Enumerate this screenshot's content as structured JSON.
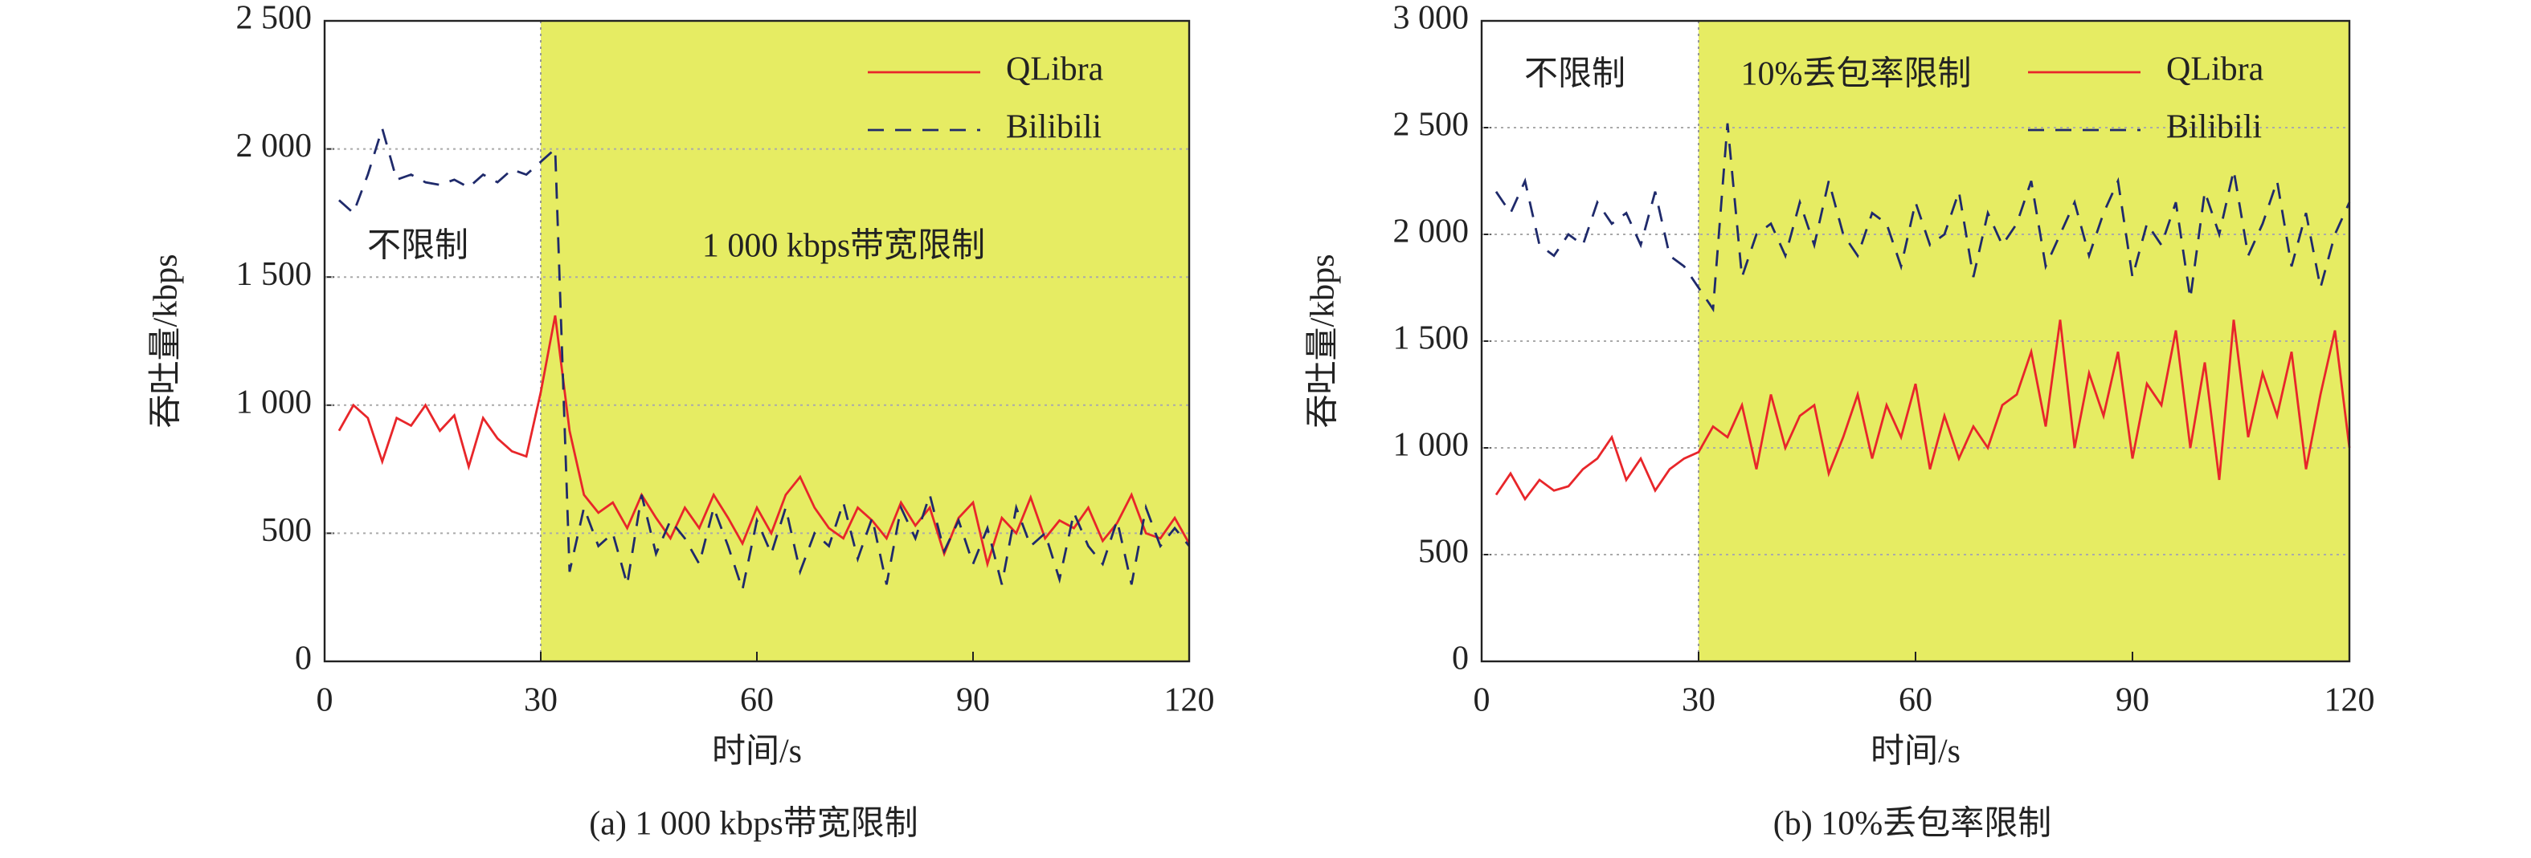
{
  "chart_data": [
    {
      "type": "line",
      "caption": "(a)  1 000 kbps带宽限制",
      "x_label": "时间/s",
      "y_label": "吞吐量/kbps",
      "annotations": [
        "不限制",
        "1 000 kbps带宽限制"
      ],
      "shaded_region": [
        30,
        120
      ],
      "shade_color": "#e6ec63",
      "xlim": [
        0,
        120
      ],
      "xticks": [
        0,
        30,
        60,
        90,
        120
      ],
      "ylim": [
        0,
        2500
      ],
      "yticks": [
        0,
        500,
        {
          "value": 1000,
          "label": "1 000"
        },
        {
          "value": 1500,
          "label": "1 500"
        },
        {
          "value": 2000,
          "label": "2 000"
        },
        {
          "value": 2500,
          "label": "2 500"
        }
      ],
      "grid": true,
      "legend": "upper right",
      "x": [
        2,
        4,
        6,
        8,
        10,
        12,
        14,
        16,
        18,
        20,
        22,
        24,
        26,
        28,
        30,
        32,
        34,
        36,
        38,
        40,
        42,
        44,
        46,
        48,
        50,
        52,
        54,
        56,
        58,
        60,
        62,
        64,
        66,
        68,
        70,
        72,
        74,
        76,
        78,
        80,
        82,
        84,
        86,
        88,
        90,
        92,
        94,
        96,
        98,
        100,
        102,
        104,
        106,
        108,
        110,
        112,
        114,
        116,
        118,
        120
      ],
      "series": [
        {
          "name": "QLibra",
          "color": "#e8262a",
          "dashed": false,
          "values": [
            900,
            1000,
            950,
            780,
            950,
            920,
            1000,
            900,
            960,
            760,
            950,
            870,
            820,
            800,
            1050,
            1350,
            900,
            650,
            580,
            620,
            520,
            650,
            560,
            480,
            600,
            520,
            650,
            560,
            460,
            600,
            500,
            650,
            720,
            600,
            520,
            480,
            600,
            550,
            480,
            620,
            530,
            600,
            420,
            560,
            620,
            380,
            560,
            500,
            640,
            480,
            550,
            520,
            600,
            470,
            540,
            650,
            500,
            480,
            560,
            460
          ]
        },
        {
          "name": "Bilibili",
          "color": "#1f2a6b",
          "dashed": true,
          "values": [
            1800,
            1750,
            1900,
            2080,
            1880,
            1900,
            1870,
            1860,
            1880,
            1850,
            1900,
            1870,
            1920,
            1900,
            1950,
            2000,
            350,
            600,
            450,
            500,
            300,
            650,
            420,
            550,
            480,
            380,
            600,
            450,
            280,
            550,
            420,
            600,
            350,
            500,
            450,
            620,
            400,
            560,
            300,
            600,
            480,
            650,
            430,
            550,
            380,
            520,
            300,
            600,
            450,
            500,
            320,
            580,
            450,
            380,
            550,
            300,
            600,
            450,
            520,
            450
          ]
        }
      ]
    },
    {
      "type": "line",
      "caption": "(b)  10%丢包率限制",
      "x_label": "时间/s",
      "y_label": "吞吐量/kbps",
      "annotations": [
        "不限制",
        "10%丢包率限制"
      ],
      "shaded_region": [
        30,
        120
      ],
      "shade_color": "#e6ec63",
      "xlim": [
        0,
        120
      ],
      "xticks": [
        0,
        30,
        60,
        90,
        120
      ],
      "ylim": [
        0,
        3000
      ],
      "yticks": [
        0,
        500,
        {
          "value": 1000,
          "label": "1 000"
        },
        {
          "value": 1500,
          "label": "1 500"
        },
        {
          "value": 2000,
          "label": "2 000"
        },
        {
          "value": 2500,
          "label": "2 500"
        },
        {
          "value": 3000,
          "label": "3 000"
        }
      ],
      "grid": true,
      "legend": "upper right",
      "x": [
        2,
        4,
        6,
        8,
        10,
        12,
        14,
        16,
        18,
        20,
        22,
        24,
        26,
        28,
        30,
        32,
        34,
        36,
        38,
        40,
        42,
        44,
        46,
        48,
        50,
        52,
        54,
        56,
        58,
        60,
        62,
        64,
        66,
        68,
        70,
        72,
        74,
        76,
        78,
        80,
        82,
        84,
        86,
        88,
        90,
        92,
        94,
        96,
        98,
        100,
        102,
        104,
        106,
        108,
        110,
        112,
        114,
        116,
        118,
        120
      ],
      "series": [
        {
          "name": "QLibra",
          "color": "#e8262a",
          "dashed": false,
          "values": [
            780,
            880,
            760,
            850,
            800,
            820,
            900,
            950,
            1050,
            850,
            950,
            800,
            900,
            950,
            980,
            1100,
            1050,
            1200,
            900,
            1250,
            1000,
            1150,
            1200,
            880,
            1050,
            1250,
            950,
            1200,
            1050,
            1300,
            900,
            1150,
            950,
            1100,
            1000,
            1200,
            1250,
            1450,
            1100,
            1600,
            1000,
            1350,
            1150,
            1450,
            950,
            1300,
            1200,
            1550,
            1000,
            1400,
            850,
            1600,
            1050,
            1350,
            1150,
            1450,
            900,
            1250,
            1550,
            1000
          ]
        },
        {
          "name": "Bilibili",
          "color": "#1f2a6b",
          "dashed": true,
          "values": [
            2200,
            2100,
            2250,
            1950,
            1900,
            2000,
            1950,
            2150,
            2050,
            2100,
            1950,
            2200,
            1900,
            1850,
            1750,
            1650,
            2520,
            1800,
            2000,
            2050,
            1900,
            2150,
            1950,
            2250,
            2000,
            1900,
            2100,
            2050,
            1850,
            2150,
            1950,
            2000,
            2200,
            1800,
            2100,
            1950,
            2050,
            2250,
            1850,
            2000,
            2150,
            1900,
            2100,
            2250,
            1800,
            2050,
            1950,
            2150,
            1700,
            2200,
            2000,
            2300,
            1900,
            2050,
            2250,
            1850,
            2100,
            1750,
            2000,
            2150
          ]
        }
      ]
    }
  ]
}
